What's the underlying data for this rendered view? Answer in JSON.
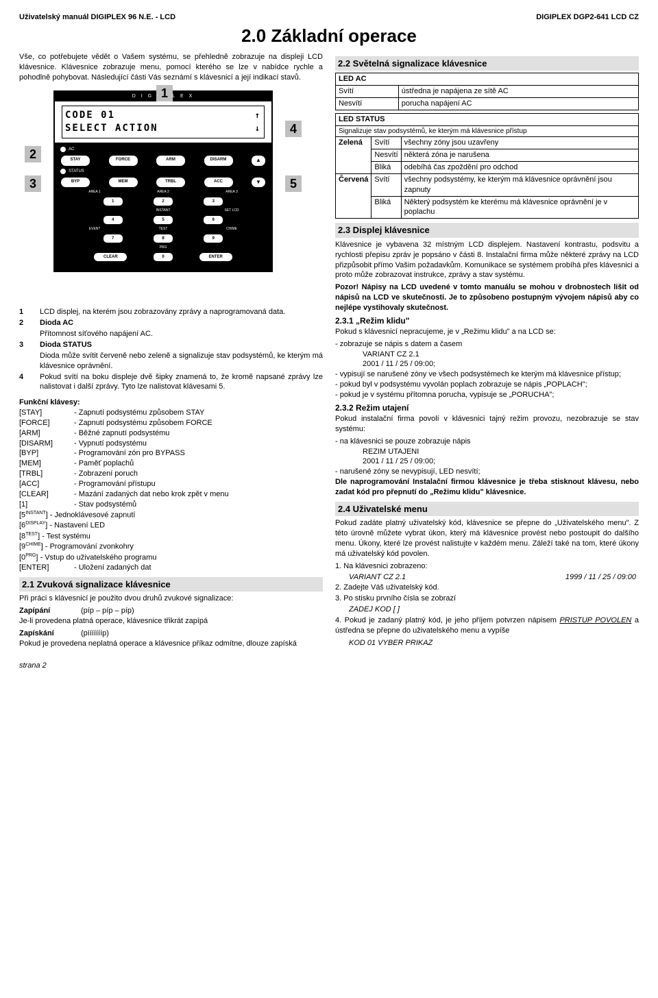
{
  "header": {
    "left": "Uživatelský manuál DIGIPLEX 96 N.E. - LCD",
    "right": "DIGIPLEX DGP2-641 LCD CZ"
  },
  "title": "2.0 Základní operace",
  "intro": "Vše, co potřebujete vědět o Vašem systému, se přehledně zobrazuje na displeji LCD klávesnice. Klávesnice zobrazuje menu, pomocí kterého se lze v nabídce rychle a pohodlně pohybovat. Následující části Vás seznámí s klávesnicí a její indikací stavů.",
  "keypad": {
    "brand": "D I G I P L E X",
    "lcd_line1": "CODE 01",
    "lcd_line2": "SELECT ACTION",
    "row1": [
      "STAY",
      "FORCE",
      "ARM",
      "DISARM"
    ],
    "row2": [
      "BYP",
      "MEM",
      "TRBL",
      "ACC"
    ],
    "areas1": [
      "AREA 1",
      "AREA 2",
      "AREA 3"
    ],
    "nums1": [
      "1",
      "2",
      "3"
    ],
    "areas2": [
      "INSTANT",
      "SET LCD"
    ],
    "nums2": [
      "4",
      "5",
      "6"
    ],
    "areas3": [
      "EVEN?",
      "TEST",
      "CHIME"
    ],
    "nums3": [
      "7",
      "8",
      "9"
    ],
    "areas4": [
      "",
      "PRG",
      ""
    ],
    "bot": [
      "CLEAR",
      "0",
      "ENTER"
    ],
    "led_ac": "AC",
    "led_status": "STATUS"
  },
  "callouts": {
    "c1": "1",
    "c2": "2",
    "c3": "3",
    "c4": "4",
    "c5": "5"
  },
  "legend": [
    {
      "n": "1",
      "t": "LCD displej, na kterém jsou zobrazovány zprávy a naprogramovaná data."
    },
    {
      "n": "2",
      "t": "Dioda AC"
    },
    {
      "n": "2b",
      "t": "Přítomnost síťového napájení AC."
    },
    {
      "n": "3",
      "t": "Dioda STATUS"
    },
    {
      "n": "3b",
      "t": "Dioda může svítit červeně nebo zeleně a signalizuje stav podsystémů, ke kterým má klávesnice oprávnění."
    },
    {
      "n": "4",
      "t": "Pokud svítí na boku displeje dvě šipky znamená to, že kromě napsané zprávy lze nalistovat i další zprávy. Tyto lze nalistovat klávesami 5."
    }
  ],
  "fk_title": "Funkční klávesy:",
  "fk": [
    {
      "k": "[STAY]",
      "d": "- Zapnutí podsystému způsobem STAY"
    },
    {
      "k": "[FORCE]",
      "d": "- Zapnutí podsystému způsobem FORCE"
    },
    {
      "k": "[ARM]",
      "d": "- Běžné zapnutí podsystému"
    },
    {
      "k": "[DISARM]",
      "d": "- Vypnutí podsystému"
    },
    {
      "k": "[BYP]",
      "d": "- Programování zón pro BYPASS"
    },
    {
      "k": "[MEM]",
      "d": "- Paměť poplachů"
    },
    {
      "k": "[TRBL]",
      "d": "- Zobrazení poruch"
    },
    {
      "k": "[ACC]",
      "d": "- Programování přístupu"
    },
    {
      "k": "[CLEAR]",
      "d": "- Mazání zadaných dat nebo krok zpět v menu"
    },
    {
      "k": "[1]",
      "d": "- Stav podsystémů"
    }
  ],
  "fk_sup": [
    {
      "k": "[5",
      "s": "INSTANT",
      "d": "] - Jednoklávesové zapnutí"
    },
    {
      "k": "[6",
      "s": "DISPLAY",
      "d": "] - Nastavení LED"
    },
    {
      "k": "[8",
      "s": "TEST",
      "d": "] - Test systému"
    },
    {
      "k": "[9",
      "s": "CHIME",
      "d": "] - Programování zvonkohry"
    },
    {
      "k": "[0",
      "s": "PRG",
      "d": "] - Vstup do uživatelského programu"
    }
  ],
  "fk_enter": {
    "k": "[ENTER]",
    "d": "- Uložení zadaných dat"
  },
  "s21": {
    "title": "2.1 Zvuková signalizace klávesnice",
    "p1": "Při práci s klávesnicí je použito dvou druhů zvukové signalizace:",
    "zapipani_l": "Zapípání",
    "zapipani_r": "(píp – píp – píp)",
    "zapipani_t": "Je-li provedena platná operace, klávesnice třikrát zapípá",
    "zapiskani_l": "Zapískání",
    "zapiskani_r": "(píííííííp)",
    "zapiskani_t": "Pokud je provedena neplatná operace a klávesnice příkaz odmítne, dlouze zapíská"
  },
  "s22": {
    "title": "2.2 Světelná signalizace klávesnice",
    "ac_hdr": "LED AC",
    "ac_rows": [
      [
        "Svítí",
        "ústředna je napájena ze sítě AC"
      ],
      [
        "Nesvítí",
        "porucha napájení AC"
      ]
    ],
    "st_hdr": "LED STATUS",
    "st_sub": "Signalizuje stav podsystémů, ke kterým má klávesnice přístup",
    "st_rows": [
      [
        "Zelená",
        "Svítí",
        "všechny zóny jsou uzavřeny"
      ],
      [
        "",
        "Nesvítí",
        "některá zóna je narušena"
      ],
      [
        "",
        "Bliká",
        "odebíhá čas zpoždění pro odchod"
      ],
      [
        "Červená",
        "Svítí",
        "všechny podsystémy, ke kterým má klávesnice oprávnění jsou zapnuty"
      ],
      [
        "",
        "Bliká",
        "Některý podsystém ke kterému má klávesnice oprávnění je v poplachu"
      ]
    ]
  },
  "s23": {
    "title": "2.3 Displej klávesnice",
    "p1": "Klávesnice je vybavena 32 místným LCD displejem. Nastavení kontrastu, podsvitu a rychlosti přepisu zpráv je popsáno v části 8. Instalační firma může některé zprávy na LCD přizpůsobit přímo Vašim požadavkům. Komunikace se systémem probíhá přes klávesnici a proto může zobrazovat instrukce, zprávy a stav systému.",
    "p2": "Pozor! Nápisy na LCD uvedené v tomto manuálu se mohou v drobnostech lišit od nápisů na LCD ve skutečnosti. Je to způsobeno postupným vývojem nápisů aby co nejlépe vystihovaly skutečnost.",
    "s231_h": "2.3.1    „Režim klidu\"",
    "s231_p": "Pokud s klávesnicí nepracujeme, je v „Režimu klidu\" a na LCD se:",
    "s231_li": [
      "zobrazuje se nápis s datem a časem",
      "vypisují se narušené zóny ve všech podsystémech ke kterým má klávesnice přístup;",
      "pokud byl v podsystému vyvolán poplach zobrazuje se nápis „POPLACH\";",
      "pokud je v systému přítomna porucha, vypisuje se „PORUCHA\";"
    ],
    "s231_v1": "VARIANT CZ 2.1",
    "s231_v2": "2001 / 11 / 25 / 09:00;",
    "s232_h": "2.3.2    Režim utajení",
    "s232_p": "Pokud instalační firma povolí v klávesnici tajný režim provozu, nezobrazuje se stav systému:",
    "s232_li1": "na klávesnici se pouze zobrazuje nápis",
    "s232_v1": "REZIM UTAJENI",
    "s232_v2": "2001 / 11 / 25 / 09:00;",
    "s232_li2": "narušené zóny se nevypisují, LED nesvítí;",
    "s232_pf": "Dle naprogramování Instalační firmou klávesnice je třeba stisknout klávesu, nebo zadat kód pro přepnutí do „Režimu klidu\" klávesnice."
  },
  "s24": {
    "title": "2.4 Uživatelské menu",
    "p1": "Pokud zadáte platný uživatelský kód, klávesnice se přepne do „Uživatelského menu\". Z této úrovně můžete vybrat úkon, který má klávesnice provést nebo postoupit do dalšího menu. Úkony, které lze provést nalistujte v každém menu. Záleží také na tom, které úkony má uživatelský kód povolen.",
    "step1": "1. Na klávesnici zobrazeno:",
    "step1a": "VARIANT CZ 2.1",
    "step1b": "1999 / 11 / 25 / 09:00",
    "step2": "2. Zadejte Váš uživatelský kód.",
    "step3": "3. Po stisku prvního čísla se zobrazí",
    "step3a": "ZADEJ KOD        [                ]",
    "step4": "4. Pokud je zadaný platný kód, je jeho příjem potvrzen nápisem ",
    "step4i": "PRISTUP POVOLEN",
    "step4b": " a ústředna se přepne do uživatelského menu a vypíše",
    "step4c": "KOD 01            VYBER PRIKAZ"
  },
  "footer": "strana 2"
}
